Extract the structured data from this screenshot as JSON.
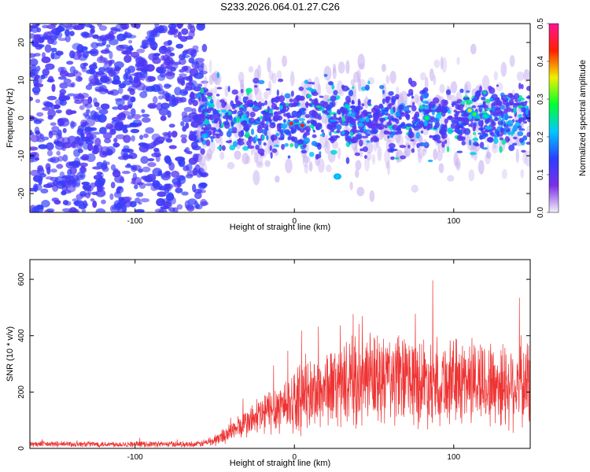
{
  "chart_data": [
    {
      "type": "heatmap",
      "title": "S233.2026.064.01.27.C26",
      "xlabel": "Height of straight line (km)",
      "ylabel": "Frequency (Hz)",
      "xlim": [
        -166,
        148
      ],
      "ylim": [
        -25,
        25
      ],
      "xticks": [
        -100,
        0,
        100
      ],
      "yticks": [
        -20,
        -10,
        0,
        10,
        20
      ],
      "noise_region_x": [
        -166,
        -60
      ],
      "signal_band_hz": [
        -10,
        10
      ],
      "hot_spots": [
        {
          "x": -2,
          "y": -1.5,
          "amp": 0.45
        },
        {
          "x": 5,
          "y": -2,
          "amp": 0.45
        },
        {
          "x": 110,
          "y": 2,
          "amp": 0.35
        },
        {
          "x": 113,
          "y": 1,
          "amp": 0.3
        },
        {
          "x": 83,
          "y": 0,
          "amp": 0.28
        },
        {
          "x": 27,
          "y": -15.5,
          "amp": 0.22
        },
        {
          "x": 120,
          "y": 0.5,
          "amp": 0.25
        }
      ],
      "colorbar": {
        "label": "Normalized spectral amplitude",
        "range": [
          0.0,
          0.5
        ],
        "ticks": [
          "0.0",
          "0.1",
          "0.2",
          "0.3",
          "0.4",
          "0.5"
        ],
        "colors": [
          "#f2f0fa",
          "#7a2fe8",
          "#2a3fff",
          "#00c8ff",
          "#00ff30",
          "#f0f000",
          "#ff2000",
          "#ff1493"
        ]
      }
    },
    {
      "type": "line",
      "xlabel": "Height of straight line (km)",
      "ylabel": "SNR (10 * v/v)",
      "xlim": [
        -166,
        148
      ],
      "ylim": [
        0,
        670
      ],
      "xticks": [
        -100,
        0,
        100
      ],
      "yticks": [
        0,
        200,
        400,
        600
      ],
      "color": "#ee3333",
      "envelope": {
        "x": [
          -166,
          -60,
          -50,
          -40,
          -30,
          -20,
          -10,
          0,
          10,
          20,
          30,
          40,
          50,
          60,
          70,
          80,
          90,
          100,
          110,
          120,
          130,
          140,
          148
        ],
        "mean": [
          15,
          15,
          28,
          60,
          90,
          120,
          150,
          170,
          190,
          215,
          225,
          235,
          240,
          245,
          245,
          240,
          240,
          235,
          245,
          230,
          225,
          230,
          225
        ],
        "spread": [
          12,
          12,
          25,
          40,
          60,
          90,
          110,
          130,
          150,
          160,
          170,
          180,
          190,
          190,
          185,
          185,
          180,
          175,
          180,
          180,
          185,
          180,
          180
        ]
      }
    }
  ]
}
